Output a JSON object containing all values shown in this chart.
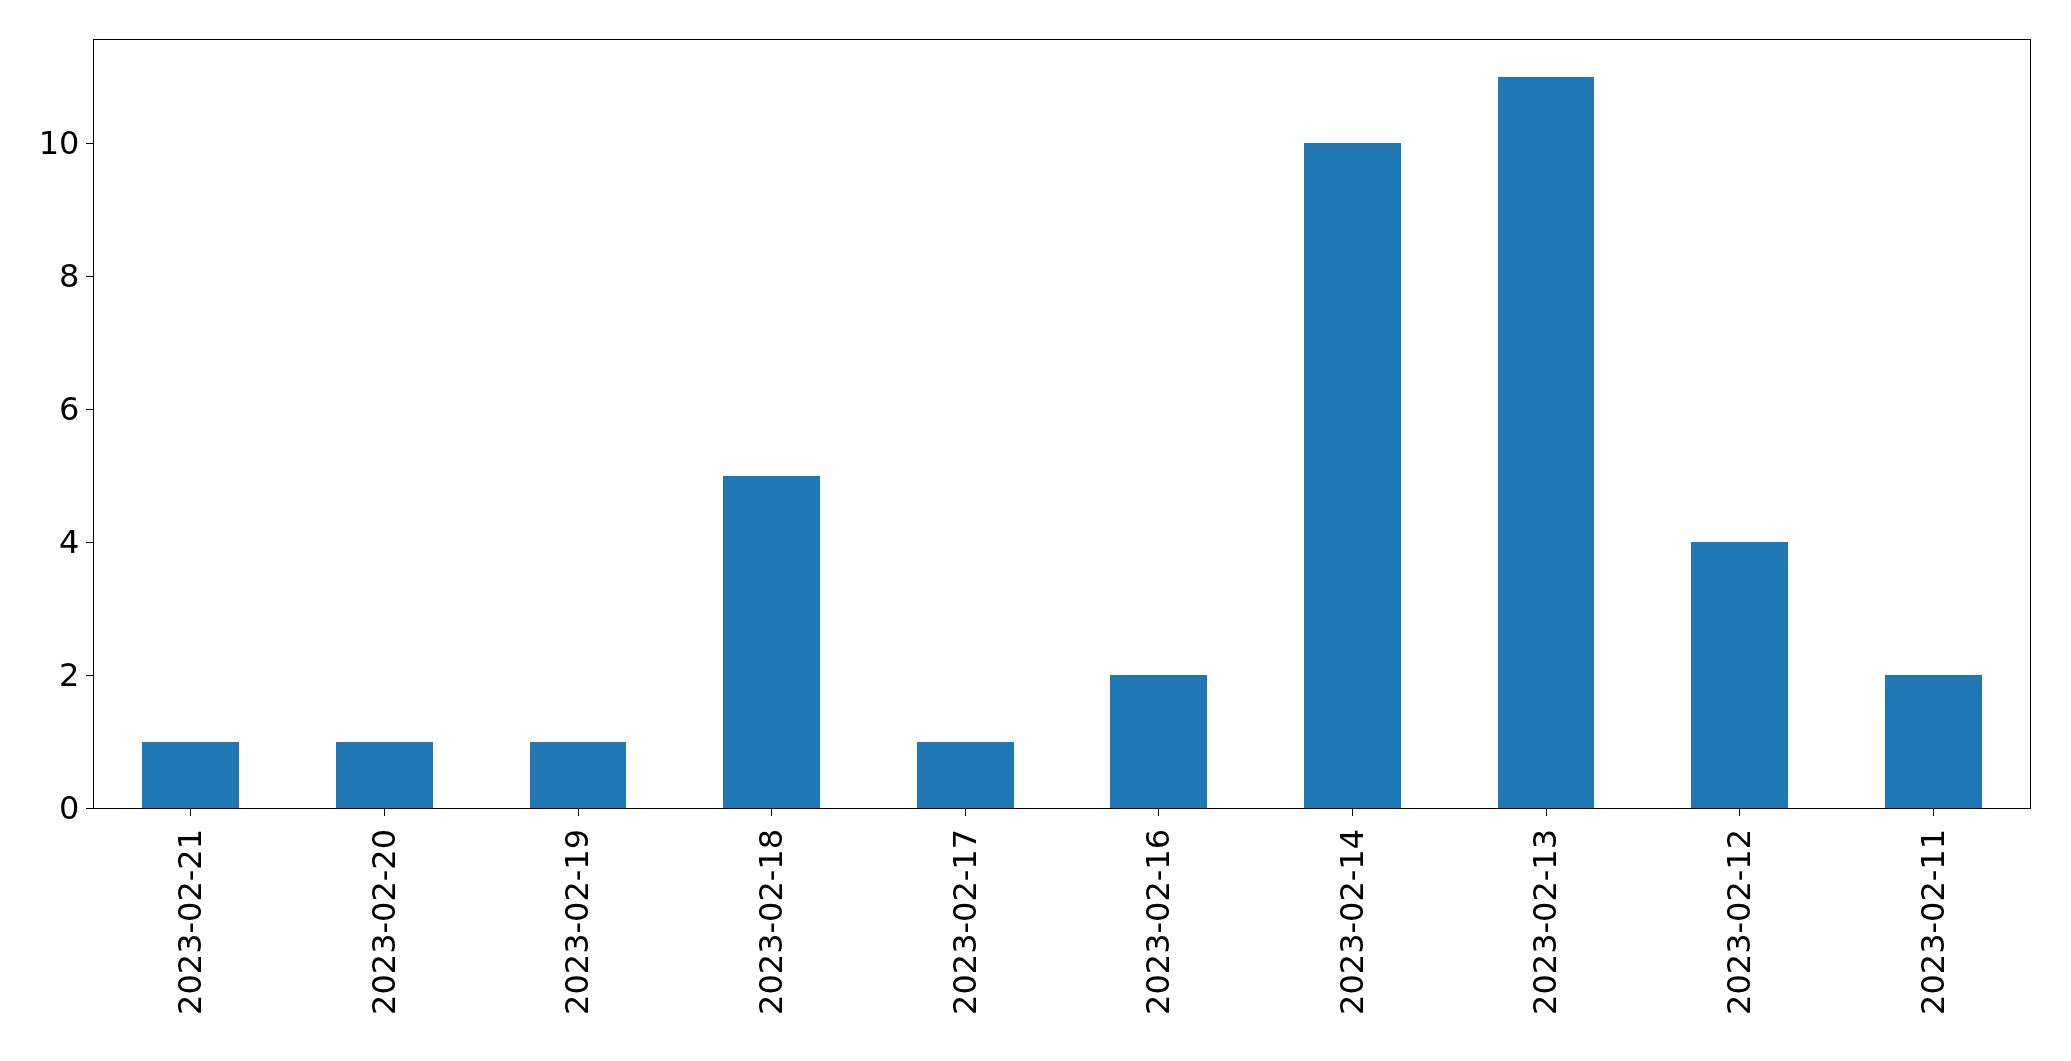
{
  "chart_data": {
    "type": "bar",
    "categories": [
      "2023-02-21",
      "2023-02-20",
      "2023-02-19",
      "2023-02-18",
      "2023-02-17",
      "2023-02-16",
      "2023-02-14",
      "2023-02-13",
      "2023-02-12",
      "2023-02-11"
    ],
    "values": [
      1,
      1,
      1,
      5,
      1,
      2,
      10,
      11,
      4,
      2
    ],
    "color": "#1f77b4",
    "ylim": [
      0,
      11.55
    ],
    "yticks": [
      0,
      2,
      4,
      6,
      8,
      10
    ]
  }
}
